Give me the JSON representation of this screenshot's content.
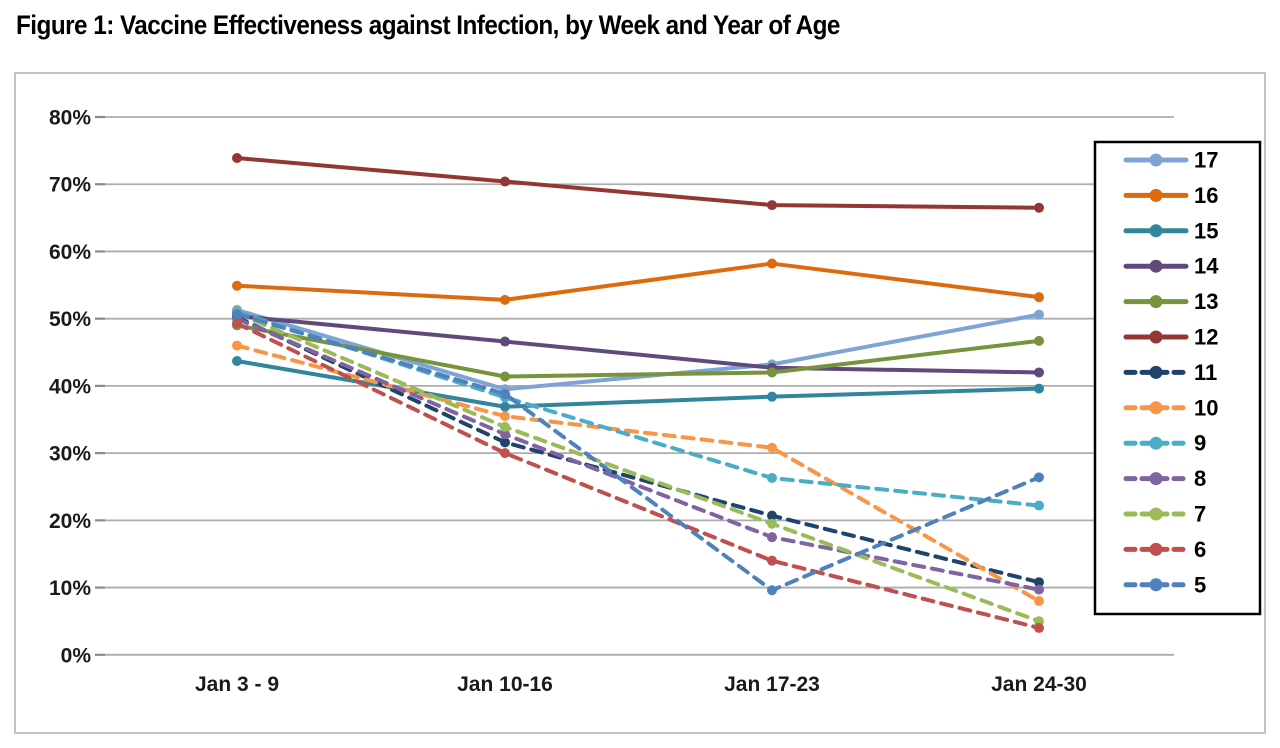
{
  "title": "Figure 1: Vaccine Effectiveness against Infection, by Week and Year of Age",
  "chart_data": {
    "type": "line",
    "title": "Figure 1: Vaccine Effectiveness against Infection, by Week and Year of Age",
    "categories": [
      "Jan 3 - 9",
      "Jan 10-16",
      "Jan 17-23",
      "Jan 24-30"
    ],
    "ylim": [
      0,
      80
    ],
    "ytick_labels": [
      "80%",
      "70%",
      "60%",
      "50%",
      "40%",
      "30%",
      "20%",
      "10%",
      "0%"
    ],
    "grid": true,
    "legend_position": "right",
    "value_unit": "percent",
    "series": [
      {
        "name": "17",
        "color": "#7EA4D6",
        "dash": false,
        "values": [
          51.3,
          39.5,
          43.2,
          50.6
        ]
      },
      {
        "name": "16",
        "color": "#DD6B0D",
        "dash": false,
        "values": [
          54.9,
          52.8,
          58.2,
          53.2
        ]
      },
      {
        "name": "15",
        "color": "#31859C",
        "dash": false,
        "values": [
          43.7,
          36.9,
          38.4,
          39.6
        ]
      },
      {
        "name": "14",
        "color": "#604A7B",
        "dash": false,
        "values": [
          50.4,
          46.6,
          42.7,
          42.0
        ]
      },
      {
        "name": "13",
        "color": "#77933C",
        "dash": false,
        "values": [
          49.0,
          41.4,
          42.0,
          46.7
        ]
      },
      {
        "name": "12",
        "color": "#943634",
        "dash": false,
        "values": [
          73.9,
          70.4,
          66.9,
          66.5
        ]
      },
      {
        "name": "11",
        "color": "#1F436B",
        "dash": true,
        "values": [
          50.2,
          31.6,
          20.7,
          10.8
        ]
      },
      {
        "name": "10",
        "color": "#F79646",
        "dash": true,
        "values": [
          46.0,
          35.5,
          30.8,
          8.0
        ]
      },
      {
        "name": "9",
        "color": "#4BACC6",
        "dash": true,
        "values": [
          51.0,
          38.3,
          26.3,
          22.2
        ]
      },
      {
        "name": "8",
        "color": "#8064A2",
        "dash": true,
        "values": [
          50.0,
          32.8,
          17.5,
          9.7
        ]
      },
      {
        "name": "7",
        "color": "#9BBB59",
        "dash": true,
        "values": [
          50.8,
          33.9,
          19.5,
          5.0
        ]
      },
      {
        "name": "6",
        "color": "#C0504D",
        "dash": true,
        "values": [
          49.3,
          30.0,
          14.0,
          4.0
        ]
      },
      {
        "name": "5",
        "color": "#4F81BD",
        "dash": true,
        "values": [
          50.7,
          38.8,
          9.6,
          26.4
        ]
      }
    ]
  }
}
